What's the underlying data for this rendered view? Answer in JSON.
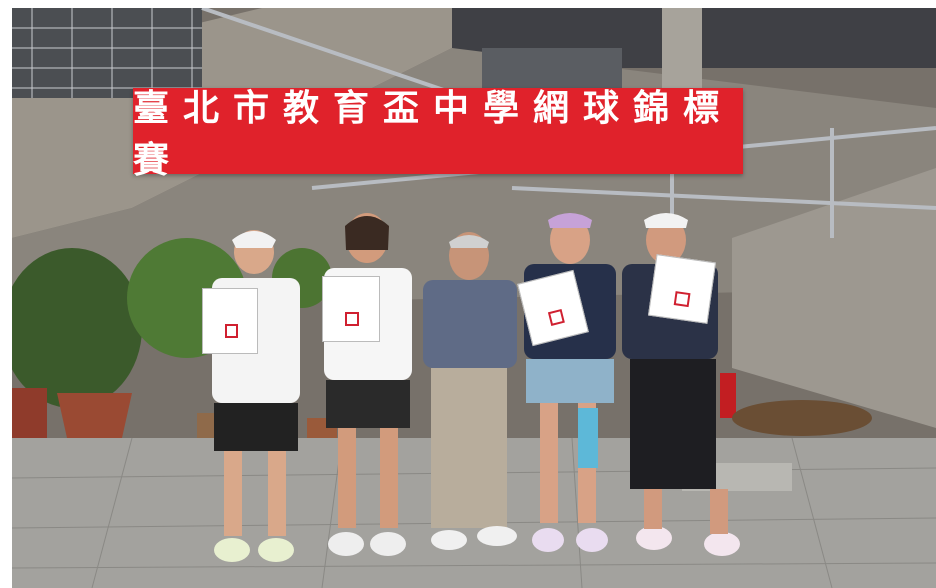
{
  "banner": {
    "text": "臺北市教育盃中學網球錦標賽"
  },
  "scene": {
    "people": 5,
    "certificates": 4
  }
}
